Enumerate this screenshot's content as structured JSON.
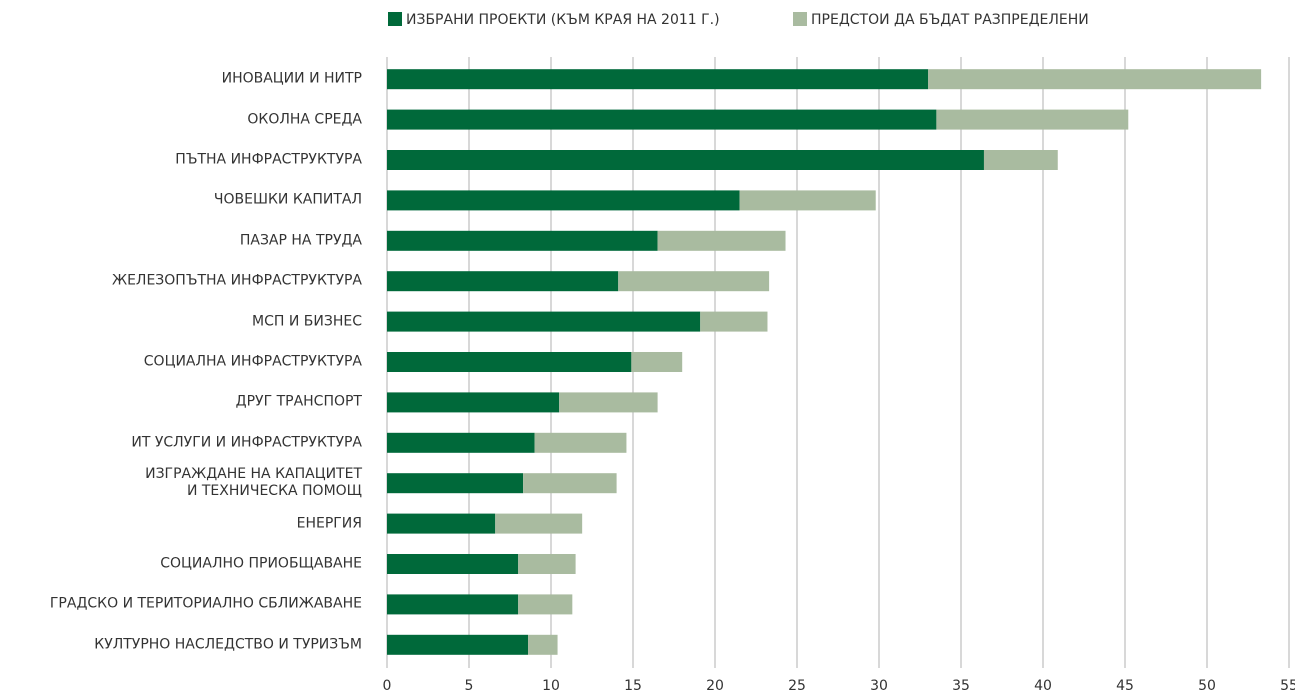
{
  "chart_data": {
    "type": "stacked-bar-horizontal",
    "categories": [
      "ИНОВАЦИИ И НИТР",
      "ОКОЛНА СРЕДА",
      "ПЪТНА ИНФРАСТРУКТУРА",
      "ЧОВЕШКИ КАПИТАЛ",
      "ПАЗАР НА ТРУДА",
      "ЖЕЛЕЗОПЪТНА ИНФРАСТРУКТУРА",
      "МСП И БИЗНЕС",
      "СОЦИАЛНА ИНФРАСТРУКТУРА",
      "ДРУГ ТРАНСПОРТ",
      "ИТ УСЛУГИ И ИНФРАСТРУКТУРА",
      "ИЗГРАЖДАНЕ НА КАПАЦИТЕТ\nИ ТЕХНИЧЕСКА ПОМОЩ",
      "ЕНЕРГИЯ",
      "СОЦИАЛНО ПРИОБЩАВАНЕ",
      "ГРАДСКО И ТЕРИТОРИАЛНО СБЛИЖАВАНЕ",
      "КУЛТУРНО НАСЛЕДСТВО И ТУРИЗЪМ"
    ],
    "series": [
      {
        "name": "ИЗБРАНИ ПРОЕКТИ (КЪМ КРАЯ НА 2011 Г.)",
        "color": "#00693a",
        "values": [
          33.0,
          33.5,
          36.4,
          21.5,
          16.5,
          14.1,
          19.1,
          14.9,
          10.5,
          9.0,
          8.3,
          6.6,
          8.0,
          8.0,
          8.6
        ]
      },
      {
        "name": "ПРЕДСТОИ ДА БЪДАТ РАЗПРЕДЕЛЕНИ",
        "color": "#a9bba0",
        "values": [
          20.3,
          11.7,
          4.5,
          8.3,
          7.8,
          9.2,
          4.1,
          3.1,
          6.0,
          5.6,
          5.7,
          5.3,
          3.5,
          3.3,
          1.8
        ]
      }
    ],
    "xlim": [
      0,
      55
    ],
    "xticks": [
      0,
      5,
      10,
      15,
      20,
      25,
      30,
      35,
      40,
      45,
      50,
      55
    ],
    "grid": true
  }
}
